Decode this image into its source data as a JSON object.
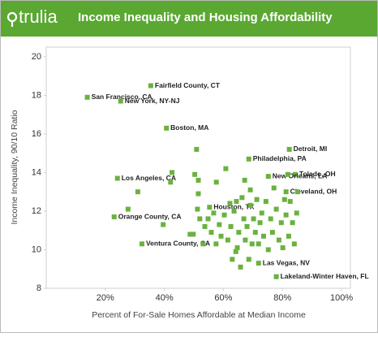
{
  "logo": "trulia",
  "chart_data": {
    "type": "scatter",
    "title": "Income Inequality and Housing Affordability",
    "x_label": "Percent of For-Sale Homes Affordable at Median Income",
    "y_label": "Income Inequality, 90/10 Ratio",
    "color": "#6ab23e",
    "xlim": [
      0,
      103
    ],
    "ylim": [
      8,
      20.5
    ],
    "xticks": [
      {
        "value": 20,
        "label": "20%"
      },
      {
        "value": 40,
        "label": "40%"
      },
      {
        "value": 60,
        "label": "60%"
      },
      {
        "value": 80,
        "label": "80%"
      },
      {
        "value": 100,
        "label": "100%"
      }
    ],
    "yticks": [
      8,
      10,
      12,
      14,
      16,
      18,
      20
    ],
    "x": [
      13.9,
      35.4,
      25.2,
      40.7,
      82.3,
      68.6,
      84.3,
      24.1,
      75.2,
      81.2,
      55.3,
      23.0,
      32.4,
      71.9,
      77.9,
      50.9,
      60.8,
      42.6,
      42.1,
      50.3,
      51.5,
      57.6,
      31.0,
      51.5,
      67.2,
      69.1,
      27.7,
      39.6,
      48.7,
      49.8,
      51.2,
      52.0,
      53.7,
      54.8,
      55.9,
      56.7,
      57.5,
      58.6,
      59.2,
      60.3,
      61.5,
      62.2,
      62.5,
      63.0,
      63.6,
      64.4,
      64.7,
      65.2,
      65.8,
      66.3,
      66.9,
      67.4,
      68.0,
      68.6,
      69.1,
      69.7,
      70.2,
      70.8,
      71.3,
      71.9,
      72.4,
      73.0,
      73.6,
      74.4,
      75.2,
      76.0,
      76.6,
      77.1,
      77.9,
      78.8,
      79.6,
      80.1,
      80.7,
      81.2,
      82.1,
      82.6,
      83.4,
      84.0,
      84.8,
      85.1,
      81.8,
      64.2,
      53.1
    ],
    "values": [
      17.9,
      18.5,
      17.7,
      16.3,
      15.2,
      14.7,
      13.9,
      13.7,
      13.8,
      13.0,
      12.2,
      11.7,
      10.3,
      9.3,
      8.6,
      15.2,
      14.2,
      14.0,
      13.5,
      13.9,
      13.6,
      13.5,
      13.0,
      12.9,
      13.6,
      13.1,
      12.1,
      11.3,
      10.8,
      10.8,
      12.1,
      11.6,
      11.2,
      11.6,
      10.9,
      11.9,
      10.3,
      11.3,
      10.7,
      11.8,
      10.5,
      12.4,
      11.2,
      9.5,
      12.0,
      12.5,
      10.1,
      10.9,
      9.1,
      12.7,
      11.6,
      10.5,
      11.2,
      9.5,
      12.3,
      10.3,
      11.6,
      10.9,
      12.6,
      10.3,
      11.4,
      11.9,
      10.7,
      12.5,
      10.0,
      11.6,
      10.9,
      13.2,
      12.1,
      10.5,
      11.4,
      10.1,
      12.6,
      11.8,
      10.7,
      12.5,
      11.4,
      10.3,
      11.9,
      13.0,
      13.9,
      9.9,
      10.3
    ],
    "point_labels": [
      "San Francisco, CA",
      "Fairfield County, CT",
      "New York, NY-NJ",
      "Boston, MA",
      "Detroit, MI",
      "Philadelphia, PA",
      "Toledo, OH",
      "Los Angeles, CA",
      "New Orleans, LA",
      "Cleveland, OH",
      "Houston, TX",
      "Orange County, CA",
      "Ventura County, CA",
      "Las Vegas, NV",
      "Lakeland-Winter Haven, FL",
      null,
      null,
      null,
      null,
      null,
      null,
      null,
      null,
      null,
      null,
      null,
      null,
      null,
      null,
      null,
      null,
      null,
      null,
      null,
      null,
      null,
      null,
      null,
      null,
      null,
      null,
      null,
      null,
      null,
      null,
      null,
      null,
      null,
      null,
      null,
      null,
      null,
      null,
      null,
      null,
      null,
      null,
      null,
      null,
      null,
      null,
      null,
      null,
      null,
      null,
      null,
      null,
      null,
      null,
      null,
      null,
      null,
      null,
      null,
      null,
      null,
      null,
      null,
      null,
      null,
      null,
      null,
      null
    ]
  }
}
